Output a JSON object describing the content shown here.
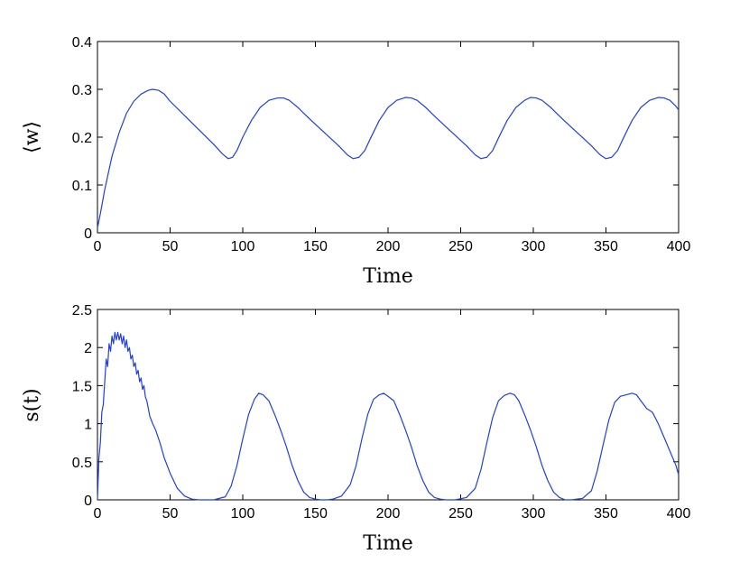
{
  "chart_data": [
    {
      "type": "line",
      "title": "",
      "xlabel": "Time",
      "ylabel": "⟨w⟩",
      "xlim": [
        0,
        400
      ],
      "ylim": [
        0,
        0.4
      ],
      "xticks": [
        0,
        50,
        100,
        150,
        200,
        250,
        300,
        350,
        400
      ],
      "yticks": [
        0,
        0.1,
        0.2,
        0.3,
        0.4
      ],
      "xtick_labels": [
        "0",
        "50",
        "100",
        "150",
        "200",
        "250",
        "300",
        "350",
        "400"
      ],
      "ytick_labels": [
        "0",
        "0.1",
        "0.2",
        "0.3",
        "0.4"
      ],
      "grid": false,
      "line_color": "#1f3fe0",
      "series": [
        {
          "x": [
            0,
            2,
            5,
            10,
            15,
            20,
            25,
            30,
            35,
            38,
            42,
            46,
            50,
            60,
            70,
            80,
            86,
            90,
            93,
            96,
            100,
            106,
            112,
            118,
            124,
            128,
            132,
            138,
            146,
            156,
            166,
            172,
            176,
            180,
            184,
            188,
            194,
            200,
            206,
            212,
            216,
            220,
            226,
            234,
            244,
            254,
            260,
            264,
            268,
            272,
            276,
            282,
            288,
            294,
            298,
            302,
            306,
            312,
            320,
            330,
            340,
            346,
            350,
            354,
            358,
            362,
            368,
            374,
            380,
            386,
            390,
            394,
            398,
            400
          ],
          "y": [
            0.01,
            0.04,
            0.09,
            0.16,
            0.21,
            0.25,
            0.275,
            0.29,
            0.298,
            0.3,
            0.298,
            0.29,
            0.275,
            0.245,
            0.215,
            0.185,
            0.165,
            0.155,
            0.158,
            0.172,
            0.2,
            0.235,
            0.262,
            0.277,
            0.282,
            0.282,
            0.277,
            0.262,
            0.238,
            0.21,
            0.182,
            0.163,
            0.155,
            0.158,
            0.172,
            0.198,
            0.235,
            0.262,
            0.277,
            0.283,
            0.282,
            0.277,
            0.262,
            0.238,
            0.21,
            0.182,
            0.163,
            0.155,
            0.158,
            0.172,
            0.198,
            0.235,
            0.262,
            0.277,
            0.283,
            0.282,
            0.277,
            0.262,
            0.238,
            0.21,
            0.182,
            0.163,
            0.155,
            0.158,
            0.172,
            0.198,
            0.235,
            0.262,
            0.277,
            0.283,
            0.282,
            0.277,
            0.265,
            0.257
          ]
        }
      ]
    },
    {
      "type": "line",
      "title": "",
      "xlabel": "Time",
      "ylabel": "s(t)",
      "xlim": [
        0,
        400
      ],
      "ylim": [
        0,
        2.5
      ],
      "xticks": [
        0,
        50,
        100,
        150,
        200,
        250,
        300,
        350,
        400
      ],
      "yticks": [
        0,
        0.5,
        1,
        1.5,
        2,
        2.5
      ],
      "xtick_labels": [
        "0",
        "50",
        "100",
        "150",
        "200",
        "250",
        "300",
        "350",
        "400"
      ],
      "ytick_labels": [
        "0",
        "0.5",
        "1",
        "1.5",
        "2",
        "2.5"
      ],
      "grid": false,
      "line_color": "#1f3fe0",
      "series": [
        {
          "x": [
            0,
            1,
            2,
            3,
            4,
            5,
            6,
            7,
            8,
            9,
            10,
            11,
            12,
            13,
            14,
            15,
            16,
            17,
            18,
            19,
            20,
            21,
            22,
            23,
            24,
            25,
            26,
            27,
            28,
            29,
            30,
            31,
            32,
            33,
            34,
            35,
            36,
            38,
            40,
            43,
            46,
            50,
            55,
            60,
            65,
            70,
            80,
            88,
            92,
            96,
            100,
            104,
            108,
            111,
            114,
            118,
            122,
            126,
            130,
            134,
            138,
            142,
            146,
            150,
            154,
            158,
            162,
            168,
            174,
            178,
            182,
            186,
            190,
            194,
            197,
            200,
            204,
            208,
            212,
            216,
            220,
            224,
            228,
            232,
            236,
            240,
            246,
            254,
            260,
            264,
            268,
            272,
            276,
            280,
            284,
            287,
            290,
            294,
            298,
            302,
            306,
            310,
            314,
            318,
            322,
            326,
            334,
            340,
            344,
            348,
            352,
            356,
            360,
            364,
            368,
            371,
            374,
            378,
            382,
            386,
            390,
            394,
            398,
            400
          ],
          "y": [
            0.0,
            0.55,
            0.75,
            1.15,
            1.25,
            1.55,
            1.85,
            1.75,
            2.05,
            1.95,
            2.15,
            2.05,
            2.2,
            2.1,
            2.2,
            2.1,
            2.18,
            2.05,
            2.15,
            2.0,
            2.1,
            1.95,
            2.0,
            1.85,
            1.9,
            1.75,
            1.8,
            1.65,
            1.7,
            1.55,
            1.6,
            1.45,
            1.5,
            1.35,
            1.3,
            1.2,
            1.1,
            1.0,
            0.92,
            0.75,
            0.55,
            0.35,
            0.15,
            0.05,
            0.01,
            0.0,
            0.0,
            0.04,
            0.18,
            0.45,
            0.8,
            1.12,
            1.32,
            1.4,
            1.38,
            1.3,
            1.12,
            0.92,
            0.7,
            0.45,
            0.25,
            0.1,
            0.03,
            0.01,
            0.0,
            0.0,
            0.01,
            0.05,
            0.2,
            0.45,
            0.8,
            1.12,
            1.32,
            1.38,
            1.4,
            1.36,
            1.3,
            1.12,
            0.92,
            0.7,
            0.45,
            0.25,
            0.1,
            0.03,
            0.01,
            0.0,
            0.0,
            0.03,
            0.15,
            0.4,
            0.75,
            1.08,
            1.3,
            1.37,
            1.4,
            1.38,
            1.3,
            1.12,
            0.92,
            0.7,
            0.45,
            0.25,
            0.1,
            0.03,
            0.0,
            0.0,
            0.02,
            0.12,
            0.38,
            0.72,
            1.05,
            1.28,
            1.36,
            1.38,
            1.4,
            1.38,
            1.3,
            1.2,
            1.15,
            1.0,
            0.82,
            0.64,
            0.46,
            0.33
          ]
        }
      ]
    }
  ]
}
